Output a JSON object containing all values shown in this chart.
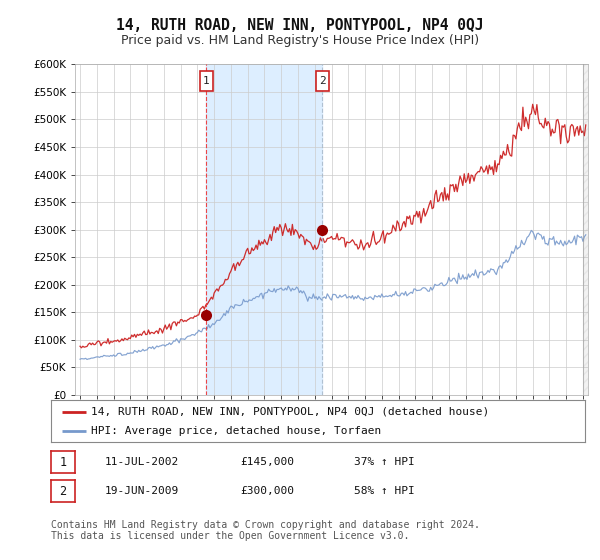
{
  "title": "14, RUTH ROAD, NEW INN, PONTYPOOL, NP4 0QJ",
  "subtitle": "Price paid vs. HM Land Registry's House Price Index (HPI)",
  "ylim": [
    0,
    600000
  ],
  "yticks": [
    0,
    50000,
    100000,
    150000,
    200000,
    250000,
    300000,
    350000,
    400000,
    450000,
    500000,
    550000,
    600000
  ],
  "xlim_start": 1994.7,
  "xlim_end": 2025.3,
  "background_color": "#ffffff",
  "plot_bg_color": "#ffffff",
  "grid_color": "#cccccc",
  "red_line_color": "#cc2222",
  "blue_line_color": "#7799cc",
  "sale1": {
    "date_num": 2002.53,
    "price": 145000,
    "label": "1"
  },
  "sale2": {
    "date_num": 2009.46,
    "price": 300000,
    "label": "2"
  },
  "vline1_color": "#ee3333",
  "vline2_color": "#aabbcc",
  "marker_color": "#990000",
  "span_color": "#ddeeff",
  "legend_label_red": "14, RUTH ROAD, NEW INN, PONTYPOOL, NP4 0QJ (detached house)",
  "legend_label_blue": "HPI: Average price, detached house, Torfaen",
  "table_rows": [
    {
      "num": "1",
      "date": "11-JUL-2002",
      "price": "£145,000",
      "pct": "37% ↑ HPI"
    },
    {
      "num": "2",
      "date": "19-JUN-2009",
      "price": "£300,000",
      "pct": "58% ↑ HPI"
    }
  ],
  "footnote": "Contains HM Land Registry data © Crown copyright and database right 2024.\nThis data is licensed under the Open Government Licence v3.0.",
  "title_fontsize": 10.5,
  "subtitle_fontsize": 9,
  "tick_fontsize": 7.5,
  "legend_fontsize": 8,
  "table_fontsize": 8,
  "footnote_fontsize": 7
}
